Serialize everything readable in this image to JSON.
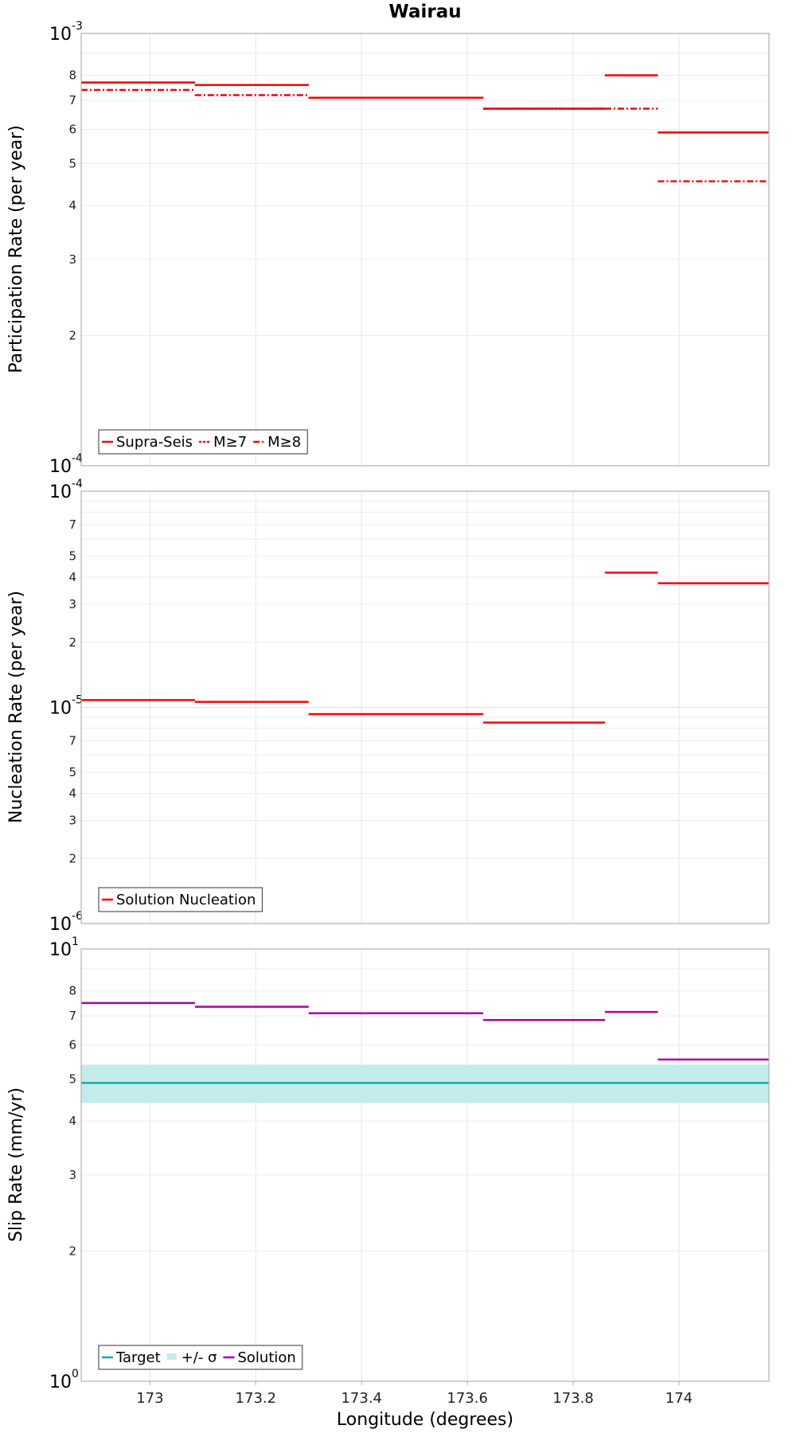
{
  "chart_data": [
    {
      "type": "line",
      "title": "Wairau",
      "ylabel": "Participation Rate (per year)",
      "yscale": "log",
      "ylim": [
        0.0001,
        0.001
      ],
      "xlim": [
        172.87,
        174.17
      ],
      "grid": true,
      "legend_position": "bottom-left",
      "y_decade_labels": [
        {
          "base": "10",
          "exp": "-4"
        },
        {
          "base": "10",
          "exp": "-3"
        }
      ],
      "y_minor_labels": [
        "2",
        "3",
        "4",
        "5",
        "6",
        "7",
        "8"
      ],
      "series": [
        {
          "name": "Supra-Seis",
          "style": "solid",
          "color": "#ff0000",
          "segments": [
            [
              172.87,
              173.085,
              0.00077
            ],
            [
              173.085,
              173.3,
              0.00076
            ],
            [
              173.3,
              173.63,
              0.00071
            ],
            [
              173.63,
              173.86,
              0.00067
            ],
            [
              173.86,
              173.96,
              0.0008
            ],
            [
              173.96,
              174.17,
              0.00059
            ]
          ]
        },
        {
          "name": "M≥7",
          "style": "dotted",
          "color": "#ff0000",
          "segments": [
            [
              172.87,
              173.085,
              0.00077
            ],
            [
              173.085,
              173.3,
              0.00076
            ],
            [
              173.3,
              173.63,
              0.00071
            ],
            [
              173.63,
              173.86,
              0.00067
            ],
            [
              173.86,
              173.96,
              0.0008
            ],
            [
              173.96,
              174.17,
              0.00059
            ]
          ]
        },
        {
          "name": "M≥8",
          "style": "dashdot",
          "color": "#ff0000",
          "segments": [
            [
              172.87,
              173.085,
              0.00074
            ],
            [
              173.085,
              173.3,
              0.00072
            ],
            [
              173.3,
              173.63,
              0.00071
            ],
            [
              173.63,
              173.86,
              0.00067
            ],
            [
              173.86,
              173.96,
              0.00067
            ],
            [
              173.96,
              174.17,
              0.000455
            ]
          ]
        }
      ]
    },
    {
      "type": "line",
      "ylabel": "Nucleation Rate (per year)",
      "yscale": "log",
      "ylim": [
        1e-06,
        0.0001
      ],
      "xlim": [
        172.87,
        174.17
      ],
      "grid": true,
      "legend_position": "bottom-left",
      "y_decade_labels": [
        {
          "base": "10",
          "exp": "-6"
        },
        {
          "base": "10",
          "exp": "-5"
        },
        {
          "base": "10",
          "exp": "-4"
        }
      ],
      "y_minor_labels": [
        "2",
        "3",
        "4",
        "5",
        "7",
        "2",
        "3",
        "4",
        "5",
        "7"
      ],
      "y_minor_values": [
        2e-06,
        3e-06,
        4e-06,
        5e-06,
        7e-06,
        2e-05,
        3e-05,
        4e-05,
        5e-05,
        7e-05
      ],
      "series": [
        {
          "name": "Solution Nucleation",
          "style": "solid",
          "color": "#ff0000",
          "segments": [
            [
              172.87,
              173.085,
              1.08e-05
            ],
            [
              173.085,
              173.3,
              1.06e-05
            ],
            [
              173.3,
              173.63,
              9.3e-06
            ],
            [
              173.63,
              173.86,
              8.5e-06
            ],
            [
              173.86,
              173.96,
              4.2e-05
            ],
            [
              173.96,
              174.17,
              3.75e-05
            ]
          ]
        }
      ]
    },
    {
      "type": "line",
      "ylabel": "Slip Rate (mm/yr)",
      "xlabel": "Longitude (degrees)",
      "yscale": "log",
      "ylim": [
        1,
        10
      ],
      "xlim": [
        172.87,
        174.17
      ],
      "x_ticks": [
        173,
        173.2,
        173.4,
        173.6,
        173.8,
        174
      ],
      "x_tick_labels": [
        "173",
        "173.2",
        "173.4",
        "173.6",
        "173.8",
        "174"
      ],
      "grid": true,
      "legend_position": "bottom-left",
      "y_decade_labels": [
        {
          "base": "10",
          "exp": "0"
        },
        {
          "base": "10",
          "exp": "1"
        }
      ],
      "y_minor_labels": [
        "2",
        "3",
        "4",
        "5",
        "6",
        "7",
        "8"
      ],
      "band": {
        "name": "+/- σ",
        "low": 4.4,
        "high": 5.4,
        "color": "#c2eceb"
      },
      "series": [
        {
          "name": "Target",
          "style": "solid",
          "color": "#1aaaa6",
          "segments": [
            [
              172.87,
              174.17,
              4.9
            ]
          ]
        },
        {
          "name": "Solution",
          "style": "solid",
          "color": "#aa00aa",
          "segments": [
            [
              172.87,
              173.085,
              7.5
            ],
            [
              173.085,
              173.3,
              7.35
            ],
            [
              173.3,
              173.63,
              7.1
            ],
            [
              173.63,
              173.86,
              6.85
            ],
            [
              173.86,
              173.96,
              7.15
            ],
            [
              173.96,
              174.17,
              5.55
            ]
          ]
        }
      ]
    }
  ]
}
